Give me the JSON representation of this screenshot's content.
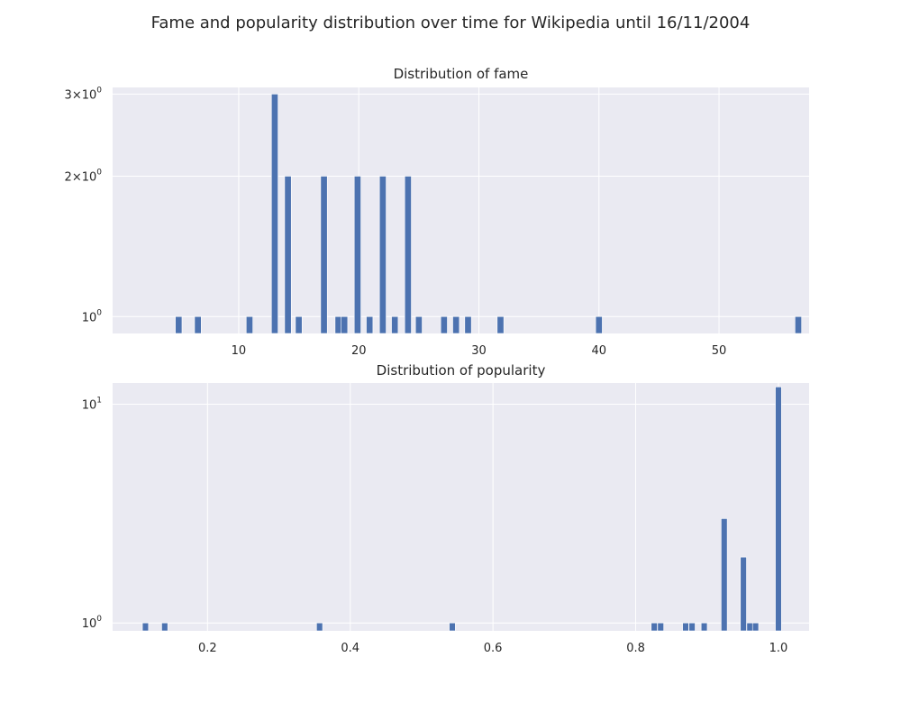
{
  "figure": {
    "title": "Fame and popularity distribution over time for Wikipedia until 16/11/2004"
  },
  "chart_data": [
    {
      "type": "bar",
      "title": "Distribution of fame",
      "xlabel": "",
      "ylabel": "",
      "xlim": [
        -0.5,
        57.5
      ],
      "ylim": [
        0.92,
        3.1
      ],
      "yscale": "log",
      "grid": true,
      "bin_width": 0.55,
      "x_ticks": [
        {
          "value": 10,
          "label": "10"
        },
        {
          "value": 20,
          "label": "20"
        },
        {
          "value": 30,
          "label": "30"
        },
        {
          "value": 40,
          "label": "40"
        },
        {
          "value": 50,
          "label": "50"
        }
      ],
      "y_ticks": [
        {
          "value": 1,
          "base": "10",
          "mult": "",
          "exp": "0"
        },
        {
          "value": 2,
          "base": "10",
          "mult": "2×",
          "exp": "0"
        },
        {
          "value": 3,
          "base": "10",
          "mult": "3×",
          "exp": "0"
        }
      ],
      "x": [
        5,
        6.6,
        10.9,
        13,
        14.1,
        15,
        17.1,
        18.3,
        18.8,
        19.9,
        20.9,
        22,
        23,
        24.1,
        25,
        27.1,
        28.1,
        29.1,
        31.8,
        40,
        56.6
      ],
      "values": [
        1,
        1,
        1,
        3,
        2,
        1,
        2,
        1,
        1,
        2,
        1,
        2,
        1,
        2,
        1,
        1,
        1,
        1,
        1,
        1,
        1
      ]
    },
    {
      "type": "bar",
      "title": "Distribution of popularity",
      "xlabel": "",
      "ylabel": "",
      "xlim": [
        0.067,
        1.043
      ],
      "ylim": [
        0.92,
        12.5
      ],
      "yscale": "log",
      "grid": true,
      "bin_width": 0.0085,
      "x_ticks": [
        {
          "value": 0.2,
          "label": "0.2"
        },
        {
          "value": 0.4,
          "label": "0.4"
        },
        {
          "value": 0.6,
          "label": "0.6"
        },
        {
          "value": 0.8,
          "label": "0.8"
        },
        {
          "value": 1.0,
          "label": "1.0"
        }
      ],
      "y_ticks": [
        {
          "value": 1,
          "base": "10",
          "mult": "",
          "exp": "0"
        },
        {
          "value": 10,
          "base": "10",
          "mult": "",
          "exp": "1"
        }
      ],
      "x": [
        0.113,
        0.14,
        0.357,
        0.543,
        0.826,
        0.835,
        0.87,
        0.879,
        0.896,
        0.924,
        0.951,
        0.96,
        0.968,
        1.0
      ],
      "values": [
        1,
        1,
        1,
        1,
        1,
        1,
        1,
        1,
        1,
        3,
        2,
        1,
        1,
        12
      ]
    }
  ]
}
